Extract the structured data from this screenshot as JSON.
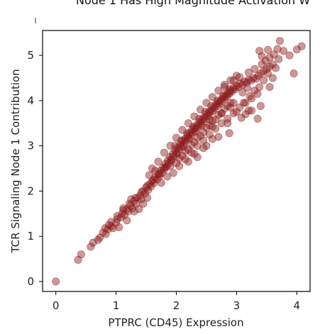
{
  "chart_data": {
    "type": "scatter",
    "title": "Node 1 Has High Magnitude Activation W",
    "xlabel": "PTPRC (CD45) Expression",
    "ylabel": "TCR Signaling Node 1 Contribution",
    "xlim": [
      -0.22,
      4.22
    ],
    "ylim": [
      -0.22,
      5.55
    ],
    "xticks": [
      "0",
      "1",
      "2",
      "3",
      "4"
    ],
    "yticks": [
      "0",
      "1",
      "2",
      "3",
      "4",
      "5"
    ],
    "grid": false,
    "point_color": "#8B1A1A",
    "point_alpha": 0.45,
    "series": [
      {
        "points": [
          [
            0.0,
            0.0
          ],
          [
            0.37,
            0.48
          ],
          [
            0.42,
            0.6
          ],
          [
            0.58,
            0.77
          ],
          [
            0.62,
            0.86
          ],
          [
            0.73,
            0.97
          ],
          [
            0.78,
            1.08
          ],
          [
            0.83,
            1.05
          ],
          [
            0.86,
            1.15
          ],
          [
            0.92,
            1.22
          ],
          [
            0.95,
            1.18
          ],
          [
            1.0,
            1.3
          ],
          [
            1.02,
            1.38
          ],
          [
            1.08,
            1.42
          ],
          [
            1.1,
            1.5
          ],
          [
            1.14,
            1.47
          ],
          [
            1.18,
            1.6
          ],
          [
            1.2,
            1.55
          ],
          [
            1.24,
            1.68
          ],
          [
            1.27,
            1.62
          ],
          [
            1.3,
            1.78
          ],
          [
            1.33,
            1.72
          ],
          [
            1.36,
            1.85
          ],
          [
            1.4,
            1.9
          ],
          [
            1.42,
            1.82
          ],
          [
            1.45,
            2.0
          ],
          [
            1.48,
            1.95
          ],
          [
            1.5,
            2.08
          ],
          [
            1.53,
            2.02
          ],
          [
            1.56,
            2.15
          ],
          [
            1.58,
            2.1
          ],
          [
            1.6,
            2.22
          ],
          [
            1.63,
            2.18
          ],
          [
            1.65,
            2.3
          ],
          [
            1.68,
            2.26
          ],
          [
            1.7,
            2.38
          ],
          [
            1.72,
            2.33
          ],
          [
            1.74,
            2.45
          ],
          [
            1.76,
            2.4
          ],
          [
            1.78,
            2.52
          ],
          [
            1.8,
            2.48
          ],
          [
            1.82,
            2.6
          ],
          [
            1.84,
            2.55
          ],
          [
            1.86,
            2.68
          ],
          [
            1.88,
            2.62
          ],
          [
            1.9,
            2.75
          ],
          [
            1.92,
            2.7
          ],
          [
            1.94,
            2.82
          ],
          [
            1.96,
            2.77
          ],
          [
            1.98,
            2.9
          ],
          [
            2.0,
            2.85
          ],
          [
            2.02,
            2.96
          ],
          [
            2.04,
            2.92
          ],
          [
            2.06,
            3.02
          ],
          [
            2.08,
            2.98
          ],
          [
            2.1,
            3.1
          ],
          [
            2.12,
            3.05
          ],
          [
            2.14,
            3.15
          ],
          [
            2.16,
            3.12
          ],
          [
            2.18,
            3.22
          ],
          [
            2.2,
            3.18
          ],
          [
            2.22,
            3.28
          ],
          [
            2.24,
            3.25
          ],
          [
            2.26,
            3.35
          ],
          [
            2.28,
            3.3
          ],
          [
            2.3,
            3.4
          ],
          [
            2.32,
            3.37
          ],
          [
            2.34,
            3.46
          ],
          [
            2.36,
            3.42
          ],
          [
            2.38,
            3.52
          ],
          [
            2.4,
            3.48
          ],
          [
            2.42,
            3.58
          ],
          [
            2.44,
            3.55
          ],
          [
            2.46,
            3.63
          ],
          [
            2.48,
            3.6
          ],
          [
            2.5,
            3.7
          ],
          [
            2.52,
            3.66
          ],
          [
            2.54,
            3.75
          ],
          [
            2.56,
            3.72
          ],
          [
            2.58,
            3.8
          ],
          [
            2.6,
            3.77
          ],
          [
            2.62,
            3.86
          ],
          [
            2.64,
            3.83
          ],
          [
            2.66,
            3.92
          ],
          [
            2.68,
            3.88
          ],
          [
            2.7,
            3.97
          ],
          [
            2.72,
            3.94
          ],
          [
            2.74,
            4.02
          ],
          [
            2.76,
            3.99
          ],
          [
            2.78,
            4.08
          ],
          [
            2.8,
            4.05
          ],
          [
            2.82,
            4.12
          ],
          [
            2.84,
            4.1
          ],
          [
            2.86,
            4.18
          ],
          [
            2.88,
            4.15
          ],
          [
            2.9,
            4.22
          ],
          [
            2.92,
            4.2
          ],
          [
            2.95,
            4.28
          ],
          [
            2.98,
            4.25
          ],
          [
            3.0,
            4.33
          ],
          [
            3.03,
            4.3
          ],
          [
            3.06,
            4.38
          ],
          [
            3.1,
            4.35
          ],
          [
            3.13,
            4.42
          ],
          [
            3.17,
            4.4
          ],
          [
            3.2,
            4.46
          ],
          [
            3.24,
            4.44
          ],
          [
            3.28,
            4.5
          ],
          [
            3.32,
            4.48
          ],
          [
            3.36,
            4.55
          ],
          [
            3.4,
            4.6
          ],
          [
            3.45,
            4.65
          ],
          [
            3.5,
            4.7
          ],
          [
            3.55,
            4.75
          ],
          [
            3.6,
            4.8
          ],
          [
            1.75,
            2.18
          ],
          [
            1.85,
            2.32
          ],
          [
            1.95,
            2.4
          ],
          [
            2.05,
            2.55
          ],
          [
            2.15,
            2.7
          ],
          [
            2.25,
            2.85
          ],
          [
            2.35,
            3.0
          ],
          [
            2.45,
            3.12
          ],
          [
            2.55,
            3.25
          ],
          [
            2.65,
            3.38
          ],
          [
            2.75,
            3.5
          ],
          [
            2.85,
            3.6
          ],
          [
            2.95,
            3.72
          ],
          [
            3.05,
            3.85
          ],
          [
            3.15,
            3.95
          ],
          [
            3.2,
            3.78
          ],
          [
            3.08,
            3.62
          ],
          [
            3.25,
            4.05
          ],
          [
            3.35,
            4.15
          ],
          [
            1.6,
            2.5
          ],
          [
            1.7,
            2.65
          ],
          [
            1.8,
            2.85
          ],
          [
            1.9,
            3.0
          ],
          [
            2.0,
            3.18
          ],
          [
            2.1,
            3.35
          ],
          [
            2.2,
            3.5
          ],
          [
            2.3,
            3.65
          ],
          [
            2.4,
            3.8
          ],
          [
            2.5,
            3.95
          ],
          [
            2.6,
            4.08
          ],
          [
            2.7,
            4.22
          ],
          [
            2.8,
            4.35
          ],
          [
            2.9,
            4.45
          ],
          [
            3.0,
            4.55
          ],
          [
            2.0,
            2.62
          ],
          [
            2.1,
            2.78
          ],
          [
            2.2,
            2.92
          ],
          [
            2.3,
            3.08
          ],
          [
            2.4,
            3.22
          ],
          [
            2.5,
            3.4
          ],
          [
            2.6,
            3.55
          ],
          [
            2.7,
            3.68
          ],
          [
            2.8,
            3.82
          ],
          [
            2.9,
            3.95
          ],
          [
            1.55,
            2.35
          ],
          [
            1.65,
            2.45
          ],
          [
            2.3,
            2.82
          ],
          [
            2.45,
            2.95
          ],
          [
            2.6,
            3.15
          ],
          [
            2.8,
            4.3
          ],
          [
            2.95,
            4.45
          ],
          [
            3.05,
            4.52
          ],
          [
            3.2,
            4.62
          ],
          [
            3.3,
            4.7
          ],
          [
            3.42,
            4.8
          ],
          [
            3.48,
            4.88
          ],
          [
            3.55,
            4.95
          ],
          [
            3.62,
            5.02
          ],
          [
            3.7,
            4.92
          ],
          [
            3.65,
            4.72
          ],
          [
            3.52,
            4.6
          ],
          [
            3.45,
            4.45
          ],
          [
            3.38,
            4.3
          ],
          [
            3.3,
            4.22
          ],
          [
            2.75,
            3.72
          ],
          [
            2.9,
            3.85
          ],
          [
            3.0,
            3.75
          ],
          [
            3.12,
            3.95
          ],
          [
            3.22,
            4.1
          ],
          [
            3.72,
            5.32
          ],
          [
            3.52,
            5.12
          ],
          [
            3.38,
            5.1
          ],
          [
            3.42,
            4.98
          ],
          [
            3.68,
            5.14
          ],
          [
            3.78,
            5.1
          ],
          [
            3.88,
            5.0
          ],
          [
            4.0,
            5.13
          ],
          [
            4.08,
            5.2
          ],
          [
            3.95,
            4.6
          ],
          [
            3.6,
            4.5
          ],
          [
            3.55,
            4.3
          ],
          [
            3.25,
            3.78
          ],
          [
            3.15,
            3.7
          ],
          [
            3.35,
            3.6
          ],
          [
            3.4,
            3.88
          ],
          [
            2.6,
            3.42
          ],
          [
            2.88,
            3.28
          ],
          [
            2.85,
            3.5
          ],
          [
            1.45,
            1.72
          ],
          [
            1.38,
            1.6
          ],
          [
            1.52,
            1.85
          ],
          [
            1.12,
            1.62
          ],
          [
            1.18,
            1.35
          ],
          [
            1.25,
            1.82
          ],
          [
            1.3,
            1.55
          ],
          [
            1.05,
            1.2
          ],
          [
            0.88,
            1.25
          ],
          [
            0.7,
            0.92
          ],
          [
            1.9,
            2.55
          ],
          [
            2.05,
            2.72
          ],
          [
            2.15,
            2.88
          ],
          [
            2.25,
            3.02
          ],
          [
            2.35,
            3.18
          ],
          [
            2.45,
            3.3
          ],
          [
            2.55,
            3.45
          ],
          [
            2.65,
            3.58
          ],
          [
            2.75,
            3.72
          ],
          [
            2.85,
            3.88
          ],
          [
            1.98,
            3.0
          ],
          [
            2.08,
            3.12
          ],
          [
            2.18,
            3.28
          ],
          [
            2.28,
            3.42
          ],
          [
            2.38,
            3.6
          ],
          [
            2.48,
            3.75
          ],
          [
            2.58,
            3.88
          ],
          [
            2.68,
            4.0
          ],
          [
            2.78,
            4.12
          ],
          [
            2.88,
            4.25
          ],
          [
            2.2,
            2.65
          ],
          [
            2.35,
            2.75
          ],
          [
            2.5,
            3.0
          ],
          [
            2.7,
            3.2
          ],
          [
            2.95,
            3.95
          ],
          [
            3.1,
            4.18
          ],
          [
            3.18,
            4.28
          ],
          [
            2.55,
            3.58
          ],
          [
            2.42,
            3.45
          ],
          [
            2.32,
            3.32
          ],
          [
            2.22,
            3.15
          ],
          [
            2.12,
            2.98
          ],
          [
            2.02,
            2.82
          ],
          [
            1.92,
            2.68
          ],
          [
            1.82,
            2.52
          ],
          [
            1.72,
            2.38
          ],
          [
            1.62,
            2.25
          ],
          [
            1.52,
            2.12
          ],
          [
            1.42,
            1.98
          ],
          [
            1.32,
            1.85
          ],
          [
            1.22,
            1.72
          ],
          [
            1.12,
            1.58
          ],
          [
            1.02,
            1.45
          ],
          [
            0.92,
            1.32
          ],
          [
            0.82,
            1.18
          ]
        ]
      }
    ]
  }
}
